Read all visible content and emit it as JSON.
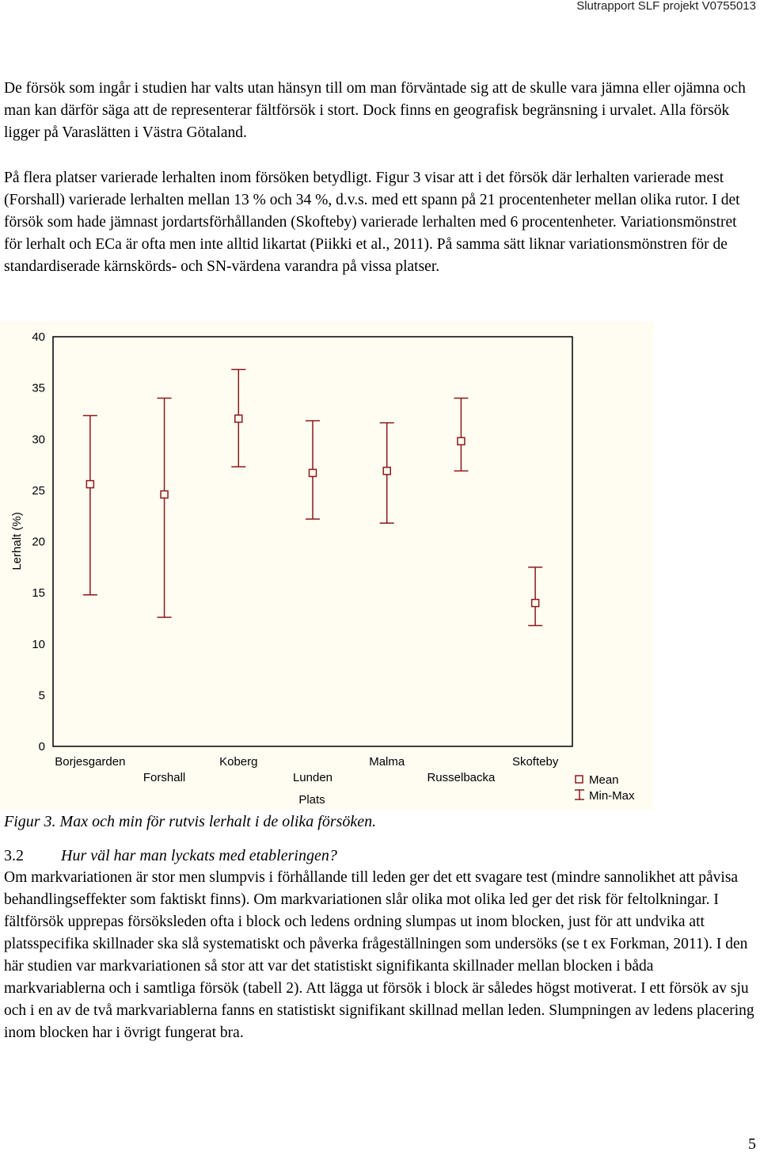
{
  "header": {
    "report_id": "Slutrapport SLF projekt V0755013"
  },
  "paragraphs": {
    "p1": "De försök som ingår i studien har valts utan hänsyn till om man förväntade sig att de skulle vara jämna eller ojämna och man kan därför säga att de representerar fältförsök i stort. Dock finns en geografisk begränsning i urvalet. Alla försök ligger på Varaslätten i Västra Götaland.",
    "p2": "På flera platser varierade lerhalten inom försöken betydligt. Figur 3 visar att i det försök där lerhalten varierade mest (Forshall) varierade lerhalten mellan 13 % och 34 %, d.v.s. med ett spann på 21 procentenheter mellan olika rutor. I det försök som hade jämnast jordartsförhållanden (Skofteby) varierade lerhalten med 6 procentenheter. Variationsmönstret för lerhalt och ECa är ofta men inte alltid likartat (Piikki et al., 2011). På samma sätt liknar variationsmönstren för de standardiserade kärnskörds- och SN-värdena varandra på vissa platser.",
    "p3": "Om markvariationen är stor men slumpvis i förhållande till leden ger det ett svagare test (mindre sannolikhet att påvisa behandlingseffekter som faktiskt finns). Om markvariationen slår olika mot olika led ger det risk för feltolkningar. I fältförsök upprepas försöksleden ofta i block och ledens ordning slumpas ut inom blocken, just för att undvika att platsspecifika skillnader ska slå systematiskt och påverka frågeställningen som undersöks (se t ex Forkman, 2011). I den här studien var markvariationen så stor att var det statistiskt signifikanta skillnader mellan blocken i båda markvariablerna och i samtliga försök (tabell 2). Att lägga ut försök i block är således högst motiverat. I ett försök av sju och i en av de två markvariablerna fanns en statistiskt signifikant skillnad mellan leden. Slumpningen av ledens placering inom blocken har i övrigt fungerat bra."
  },
  "caption": "Figur 3. Max och min för rutvis lerhalt i de olika försöken.",
  "section": {
    "number": "3.2",
    "title": "Hur väl har man lyckats med etableringen?"
  },
  "page_number": "5",
  "chart_data": {
    "type": "scatter",
    "title": "",
    "xlabel": "Plats",
    "ylabel": "Lerhalt (%)",
    "ylim": [
      0,
      40
    ],
    "yticks": [
      0,
      5,
      10,
      15,
      20,
      25,
      30,
      35,
      40
    ],
    "categories": [
      "Borjesgarden",
      "Forshall",
      "Koberg",
      "Lunden",
      "Malma",
      "Russelbacka",
      "Skofteby"
    ],
    "series": [
      {
        "name": "Mean",
        "values": [
          25.6,
          24.6,
          32.0,
          26.7,
          26.9,
          29.8,
          14.0
        ]
      },
      {
        "name": "Min",
        "values": [
          14.8,
          12.6,
          27.3,
          22.2,
          21.8,
          26.9,
          11.8
        ]
      },
      {
        "name": "Max",
        "values": [
          32.3,
          34.0,
          36.8,
          31.8,
          31.6,
          34.0,
          17.5
        ]
      }
    ],
    "legend": {
      "position": "bottom-right",
      "mean_label": "Mean",
      "range_label": "Min-Max"
    },
    "colors": {
      "marker": "#8b1a1a",
      "background": "#fffcf2"
    }
  }
}
